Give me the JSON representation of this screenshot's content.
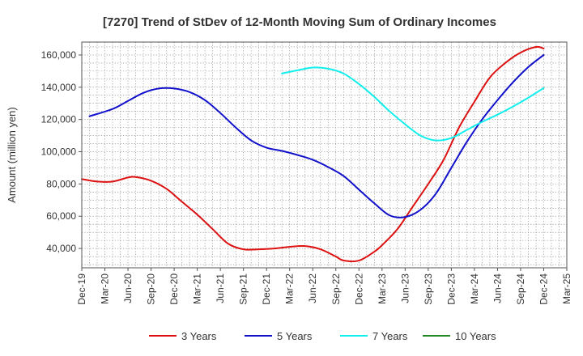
{
  "chart_data": {
    "type": "line",
    "title": "[7270]  Trend of StDev of 12-Month Moving Sum of Ordinary Incomes",
    "xlabel": "",
    "ylabel": "Amount (million yen)",
    "ylim": [
      28000,
      168000
    ],
    "yticks": [
      40000,
      60000,
      80000,
      100000,
      120000,
      140000,
      160000
    ],
    "ytick_labels": [
      "40,000",
      "60,000",
      "80,000",
      "100,000",
      "120,000",
      "140,000",
      "160,000"
    ],
    "x_tick_labels": [
      "Dec-19",
      "Mar-20",
      "Jun-20",
      "Sep-20",
      "Dec-20",
      "Mar-21",
      "Jun-21",
      "Sep-21",
      "Dec-21",
      "Mar-22",
      "Jun-22",
      "Sep-22",
      "Dec-22",
      "Mar-23",
      "Jun-23",
      "Sep-23",
      "Dec-23",
      "Mar-24",
      "Jun-24",
      "Sep-24",
      "Dec-24",
      "Mar-25"
    ],
    "grid": true,
    "legend_position": "bottom",
    "series": [
      {
        "name": "3 Years",
        "color": "#dd1111",
        "points": [
          [
            "Dec-19",
            83000
          ],
          [
            "Feb-20",
            81500
          ],
          [
            "Apr-20",
            81500
          ],
          [
            "Jun-20",
            84000
          ],
          [
            "Jul-20",
            84300
          ],
          [
            "Sep-20",
            82000
          ],
          [
            "Nov-20",
            77000
          ],
          [
            "Jan-21",
            69000
          ],
          [
            "Mar-21",
            61000
          ],
          [
            "May-21",
            52000
          ],
          [
            "Jul-21",
            43000
          ],
          [
            "Sep-21",
            39500
          ],
          [
            "Nov-21",
            39500
          ],
          [
            "Jan-22",
            40000
          ],
          [
            "Mar-22",
            41000
          ],
          [
            "May-22",
            41500
          ],
          [
            "Jul-22",
            39500
          ],
          [
            "Sep-22",
            35000
          ],
          [
            "Oct-22",
            32500
          ],
          [
            "Dec-22",
            32500
          ],
          [
            "Feb-23",
            38000
          ],
          [
            "Mar-23",
            42000
          ],
          [
            "May-23",
            52000
          ],
          [
            "Jul-23",
            66000
          ],
          [
            "Sep-23",
            80000
          ],
          [
            "Nov-23",
            95000
          ],
          [
            "Jan-24",
            115000
          ],
          [
            "Mar-24",
            131000
          ],
          [
            "May-24",
            146000
          ],
          [
            "Jul-24",
            155000
          ],
          [
            "Sep-24",
            161500
          ],
          [
            "Nov-24",
            165000
          ],
          [
            "Dec-24",
            164000
          ]
        ]
      },
      {
        "name": "5 Years",
        "color": "#1111cc",
        "points": [
          [
            "Jan-20",
            122000
          ],
          [
            "Apr-20",
            126500
          ],
          [
            "Jun-20",
            131500
          ],
          [
            "Aug-20",
            136500
          ],
          [
            "Oct-20",
            139200
          ],
          [
            "Dec-20",
            139200
          ],
          [
            "Feb-21",
            137000
          ],
          [
            "Apr-21",
            132000
          ],
          [
            "Jun-21",
            124000
          ],
          [
            "Aug-21",
            115000
          ],
          [
            "Oct-21",
            107000
          ],
          [
            "Dec-21",
            102500
          ],
          [
            "Feb-22",
            100500
          ],
          [
            "Apr-22",
            98000
          ],
          [
            "Jun-22",
            95000
          ],
          [
            "Aug-22",
            90500
          ],
          [
            "Oct-22",
            85000
          ],
          [
            "Dec-22",
            76500
          ],
          [
            "Feb-23",
            68000
          ],
          [
            "Apr-23",
            60500
          ],
          [
            "Jun-23",
            59500
          ],
          [
            "Aug-23",
            64000
          ],
          [
            "Oct-23",
            74000
          ],
          [
            "Dec-23",
            90000
          ],
          [
            "Feb-24",
            106000
          ],
          [
            "Apr-24",
            120000
          ],
          [
            "Jun-24",
            132000
          ],
          [
            "Aug-24",
            143000
          ],
          [
            "Oct-24",
            152500
          ],
          [
            "Dec-24",
            160000
          ]
        ]
      },
      {
        "name": "7 Years",
        "color": "#11eeee",
        "points": [
          [
            "Feb-22",
            148500
          ],
          [
            "Apr-22",
            150500
          ],
          [
            "Jun-22",
            152200
          ],
          [
            "Aug-22",
            151500
          ],
          [
            "Oct-22",
            148500
          ],
          [
            "Dec-22",
            142000
          ],
          [
            "Feb-23",
            134000
          ],
          [
            "Apr-23",
            125000
          ],
          [
            "Jun-23",
            117000
          ],
          [
            "Aug-23",
            110000
          ],
          [
            "Oct-23",
            107000
          ],
          [
            "Dec-23",
            108500
          ],
          [
            "Feb-24",
            113500
          ],
          [
            "Apr-24",
            118500
          ],
          [
            "Jun-24",
            123000
          ],
          [
            "Aug-24",
            128000
          ],
          [
            "Oct-24",
            133500
          ],
          [
            "Dec-24",
            139500
          ]
        ]
      },
      {
        "name": "10 Years",
        "color": "#228822",
        "points": []
      }
    ]
  }
}
